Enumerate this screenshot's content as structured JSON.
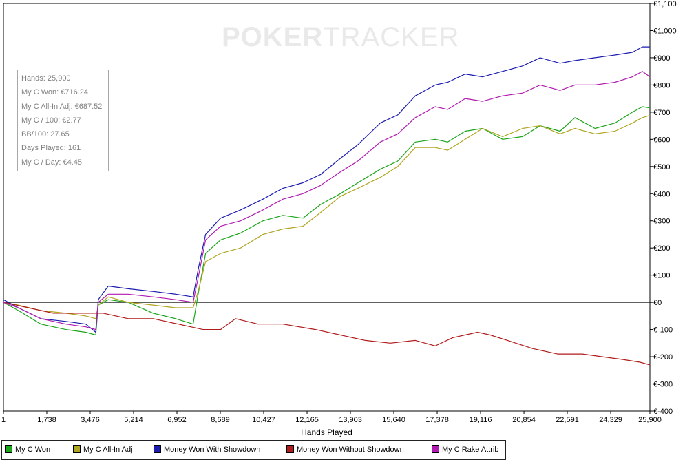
{
  "watermark": {
    "bold": "POKER",
    "thin": "TRACKER"
  },
  "stats": [
    "Hands: 25,900",
    "My C Won: €716.24",
    "My C All-In Adj: €687.52",
    "My C / 100: €2.77",
    "BB/100: 27.65",
    "Days Played: 161",
    "My C / Day: €4.45"
  ],
  "chart_data": {
    "type": "line",
    "xlabel": "Hands Played",
    "ylabel": "",
    "xlim": [
      1,
      25900
    ],
    "ylim": [
      -400,
      1100
    ],
    "x_ticks": [
      1,
      1738,
      3476,
      5214,
      6952,
      8689,
      10427,
      12165,
      13903,
      15640,
      17378,
      19116,
      20854,
      22591,
      24329,
      25900
    ],
    "x_tick_labels": [
      "1",
      "1,738",
      "3,476",
      "5,214",
      "6,952",
      "8,689",
      "10,427",
      "12,165",
      "13,903",
      "15,640",
      "17,378",
      "19,116",
      "20,854",
      "22,591",
      "24,329",
      "25,900"
    ],
    "y_ticks": [
      -400,
      -300,
      -200,
      -100,
      0,
      100,
      200,
      300,
      400,
      500,
      600,
      700,
      800,
      900,
      1000,
      1100
    ],
    "y_tick_labels": [
      "€-400",
      "€-300",
      "€-200",
      "€-100",
      "€0",
      "€100",
      "€200",
      "€300",
      "€400",
      "€500",
      "€600",
      "€700",
      "€800",
      "€900",
      "€1,000",
      "€1,100"
    ],
    "grid": true,
    "legend_position": "bottom",
    "series": [
      {
        "name": "My C Won",
        "color": "#1aa51a",
        "x": [
          1,
          600,
          1500,
          2500,
          3300,
          3700,
          3800,
          4200,
          5000,
          6000,
          6900,
          7600,
          7800,
          8100,
          8700,
          9500,
          10400,
          11200,
          12000,
          12700,
          13500,
          14200,
          15100,
          15800,
          16500,
          17300,
          17800,
          18500,
          19200,
          20000,
          20800,
          21500,
          22300,
          22900,
          23700,
          24500,
          25200,
          25600,
          25900
        ],
        "y": [
          0,
          -30,
          -80,
          -100,
          -110,
          -120,
          -10,
          10,
          0,
          -40,
          -60,
          -80,
          30,
          180,
          230,
          255,
          300,
          320,
          310,
          360,
          400,
          440,
          490,
          520,
          590,
          600,
          590,
          630,
          640,
          600,
          610,
          650,
          630,
          680,
          640,
          660,
          700,
          720,
          716
        ]
      },
      {
        "name": "My C All-In Adj",
        "color": "#b0a520",
        "x": [
          1,
          600,
          1500,
          2500,
          3300,
          3700,
          3800,
          4200,
          5000,
          6000,
          6900,
          7600,
          7800,
          8100,
          8700,
          9500,
          10400,
          11200,
          12000,
          12700,
          13500,
          14200,
          15100,
          15800,
          16500,
          17300,
          17800,
          18500,
          19200,
          20000,
          20800,
          21500,
          22300,
          22900,
          23700,
          24500,
          25200,
          25600,
          25900
        ],
        "y": [
          0,
          -10,
          -30,
          -40,
          -50,
          -60,
          -10,
          20,
          0,
          -10,
          -20,
          -20,
          40,
          150,
          180,
          200,
          250,
          270,
          280,
          330,
          390,
          420,
          460,
          500,
          570,
          570,
          560,
          600,
          640,
          610,
          640,
          650,
          620,
          640,
          620,
          630,
          660,
          680,
          688
        ]
      },
      {
        "name": "Money Won With Showdown",
        "color": "#1b1bb0",
        "x": [
          1,
          600,
          1500,
          2500,
          3300,
          3700,
          3800,
          4200,
          5000,
          6000,
          6900,
          7600,
          7800,
          8100,
          8700,
          9500,
          10400,
          11200,
          12000,
          12700,
          13500,
          14200,
          15100,
          15800,
          16500,
          17300,
          17800,
          18500,
          19200,
          20000,
          20800,
          21500,
          22300,
          22900,
          23700,
          24500,
          25200,
          25600,
          25900
        ],
        "y": [
          10,
          -20,
          -60,
          -70,
          -80,
          -110,
          10,
          60,
          50,
          40,
          30,
          20,
          120,
          250,
          310,
          340,
          380,
          420,
          440,
          470,
          530,
          580,
          660,
          690,
          760,
          800,
          810,
          840,
          830,
          850,
          870,
          900,
          880,
          890,
          900,
          910,
          920,
          940,
          940
        ]
      },
      {
        "name": "Money Won Without Showdown",
        "color": "#b01b1b",
        "x": [
          1,
          1000,
          2000,
          3000,
          4000,
          5000,
          6000,
          7000,
          8000,
          8700,
          9300,
          10200,
          11200,
          12500,
          13500,
          14500,
          15500,
          16500,
          17300,
          18000,
          19000,
          19500,
          20200,
          21200,
          22200,
          23200,
          24000,
          24800,
          25500,
          25900
        ],
        "y": [
          0,
          -20,
          -40,
          -40,
          -40,
          -60,
          -60,
          -80,
          -100,
          -100,
          -60,
          -80,
          -80,
          -100,
          -120,
          -140,
          -150,
          -140,
          -160,
          -130,
          -110,
          -120,
          -140,
          -170,
          -190,
          -190,
          -200,
          -210,
          -220,
          -230
        ]
      },
      {
        "name": "My C Rake Attrib",
        "color": "#b01bb0",
        "x": [
          1,
          600,
          1500,
          2500,
          3300,
          3700,
          3800,
          4200,
          5000,
          6000,
          6900,
          7600,
          7800,
          8100,
          8700,
          9500,
          10400,
          11200,
          12000,
          12700,
          13500,
          14200,
          15100,
          15800,
          16500,
          17300,
          17800,
          18500,
          19200,
          20000,
          20800,
          21500,
          22300,
          22900,
          23700,
          24500,
          25200,
          25600,
          25900
        ],
        "y": [
          0,
          -20,
          -60,
          -80,
          -90,
          -100,
          0,
          30,
          30,
          20,
          10,
          0,
          90,
          230,
          280,
          300,
          340,
          380,
          400,
          430,
          480,
          520,
          590,
          620,
          680,
          720,
          710,
          750,
          740,
          760,
          770,
          800,
          780,
          800,
          800,
          810,
          830,
          850,
          830
        ]
      }
    ]
  }
}
